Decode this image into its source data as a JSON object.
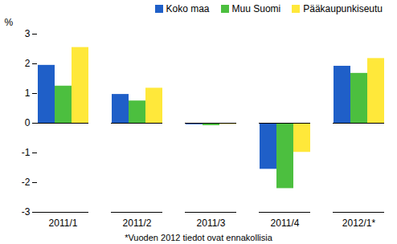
{
  "chart_data": {
    "type": "bar",
    "y_label": "%",
    "caption": "*Vuoden 2012 tiedot ovat ennakollisia",
    "categories": [
      "2011/1",
      "2011/2",
      "2011/3",
      "2011/4",
      "2012/1*"
    ],
    "series": [
      {
        "name": "Koko maa",
        "color": "#1f5fc8",
        "values": [
          1.95,
          0.97,
          -0.05,
          -1.55,
          1.92
        ]
      },
      {
        "name": "Muu Suomi",
        "color": "#4cbf3f",
        "values": [
          1.25,
          0.75,
          -0.08,
          -2.2,
          1.68
        ]
      },
      {
        "name": "Pääkaupunkiseutu",
        "color": "#ffe83a",
        "values": [
          2.55,
          1.18,
          -0.04,
          -0.98,
          2.18
        ]
      }
    ],
    "ylim": [
      -3,
      3
    ],
    "yticks": [
      -3,
      -2,
      -1,
      0,
      1,
      2,
      3
    ],
    "grid": false,
    "legend": "top"
  }
}
